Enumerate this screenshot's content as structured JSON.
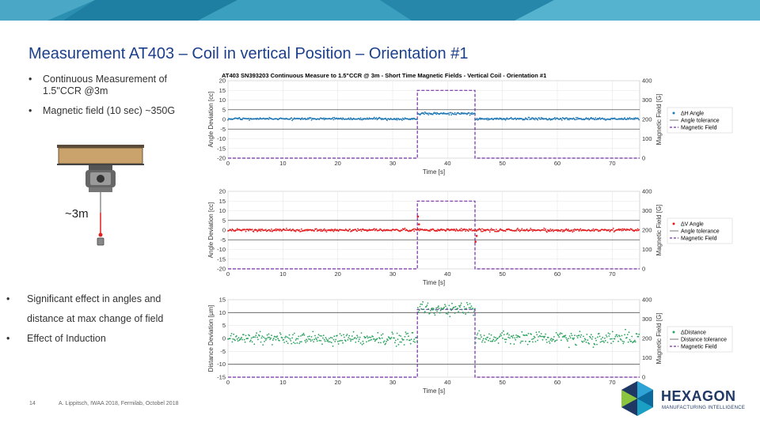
{
  "slide": {
    "title": "Measurement AT403 – Coil in vertical Position – Orientation #1",
    "bullets_top": [
      "Continuous Measurement of 1.5\"CCR @3m",
      "Magnetic field (10 sec) ~350G"
    ],
    "bullets_bottom": [
      "Significant effect  in angles  and distance at max change of field",
      "Effect of Induction"
    ],
    "distance_label": "~3m",
    "page_number": "14",
    "footer": "A. Lippitsch, IWAA 2018, Fermilab, Octobel 2018",
    "logo": {
      "name": "HEXAGON",
      "tagline": "MANUFACTURING INTELLIGENCE",
      "icon": "hexagon-logo-icon"
    },
    "bullet_glyph": "•",
    "colors": {
      "title": "#1c3f8c",
      "h_angle": "#1f77b4",
      "v_angle": "#e41a1c",
      "distance": "#2ca25f",
      "magnetic_field": "#7030a0"
    }
  },
  "chart_data": [
    {
      "type": "scatter",
      "title": "AT403 SN393203 Continuous Measure to 1.5\"CCR @ 3m - Short Time Magnetic Fields - Vertical Coil - Orientation #1",
      "xlabel": "Time [s]",
      "ylabel": "Angle Deviation [cc]",
      "y2label": "Magnetic Field [G]",
      "xlim": [
        0,
        75
      ],
      "ylim": [
        -20,
        20
      ],
      "y2lim": [
        0,
        400
      ],
      "xticks": [
        0,
        10,
        20,
        30,
        40,
        50,
        60,
        70
      ],
      "yticks": [
        20,
        15,
        10,
        5,
        0,
        -5,
        -10,
        -15,
        -20
      ],
      "y2ticks": [
        400,
        300,
        200,
        100,
        0
      ],
      "tolerance": [
        5,
        -5
      ],
      "series": [
        {
          "name": "ΔH Angle",
          "kind": "points",
          "color": "#1f77b4",
          "segments": [
            [
              0,
              34.5,
              0.3
            ],
            [
              34.5,
              45,
              3
            ],
            [
              45,
              75,
              0.3
            ]
          ],
          "noise": 0.5
        },
        {
          "name": "Angle tolerance",
          "kind": "tolerance"
        },
        {
          "name": "Magnetic Field",
          "kind": "field",
          "values": [
            [
              0,
              0
            ],
            [
              34.5,
              0
            ],
            [
              34.5,
              350
            ],
            [
              45,
              350
            ],
            [
              45,
              0
            ],
            [
              75,
              0
            ]
          ]
        }
      ]
    },
    {
      "type": "scatter",
      "xlabel": "Time [s]",
      "ylabel": "Angle Deviation [cc]",
      "y2label": "Magnetic Field [G]",
      "xlim": [
        0,
        75
      ],
      "ylim": [
        -20,
        20
      ],
      "y2lim": [
        0,
        400
      ],
      "xticks": [
        0,
        10,
        20,
        30,
        40,
        50,
        60,
        70
      ],
      "yticks": [
        20,
        15,
        10,
        5,
        0,
        -5,
        -10,
        -15,
        -20
      ],
      "y2ticks": [
        400,
        300,
        200,
        100,
        0
      ],
      "tolerance": [
        5,
        -5
      ],
      "series": [
        {
          "name": "ΔV Angle",
          "kind": "points",
          "color": "#e41a1c",
          "segments": [
            [
              0,
              75,
              0
            ]
          ],
          "noise": 0.6,
          "spikes": [
            [
              34.6,
              7
            ],
            [
              34.8,
              3
            ],
            [
              45.1,
              -6
            ],
            [
              45.3,
              -3
            ]
          ]
        },
        {
          "name": "Angle tolerance",
          "kind": "tolerance"
        },
        {
          "name": "Magnetic Field",
          "kind": "field",
          "values": [
            [
              0,
              0
            ],
            [
              34.5,
              0
            ],
            [
              34.5,
              350
            ],
            [
              45,
              350
            ],
            [
              45,
              0
            ],
            [
              75,
              0
            ]
          ]
        }
      ]
    },
    {
      "type": "scatter",
      "xlabel": "Time [s]",
      "ylabel": "Distance Deviation [µm]",
      "y2label": "Magnetic Field [G]",
      "xlim": [
        0,
        75
      ],
      "ylim": [
        -15,
        15
      ],
      "y2lim": [
        0,
        400
      ],
      "xticks": [
        0,
        10,
        20,
        30,
        40,
        50,
        60,
        70
      ],
      "yticks": [
        15,
        10,
        5,
        0,
        -5,
        -10,
        -15
      ],
      "y2ticks": [
        400,
        300,
        200,
        100,
        0
      ],
      "tolerance": [
        10,
        -10
      ],
      "series": [
        {
          "name": "ΔDistance",
          "kind": "points",
          "color": "#2ca25f",
          "segments": [
            [
              0,
              34.5,
              0
            ],
            [
              34.5,
              45,
              11.5
            ],
            [
              45,
              75,
              0
            ]
          ],
          "noise": 2.2
        },
        {
          "name": "Distance tolerance",
          "kind": "tolerance"
        },
        {
          "name": "Magnetic Field",
          "kind": "field",
          "values": [
            [
              0,
              0
            ],
            [
              34.5,
              0
            ],
            [
              34.5,
              350
            ],
            [
              45,
              350
            ],
            [
              45,
              0
            ],
            [
              75,
              0
            ]
          ]
        }
      ]
    }
  ]
}
